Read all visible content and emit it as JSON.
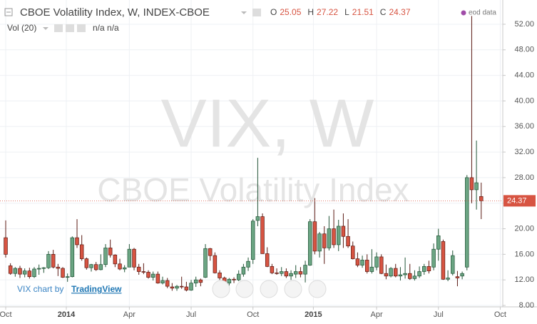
{
  "chart_data": {
    "type": "candlestick",
    "title": "CBOE Volatility Index, W, INDEX-CBOE",
    "ohlc_labels": [
      "O",
      "H",
      "L",
      "C"
    ],
    "indicator": "Vol (20)",
    "indicator_values": "n/a n/a",
    "data_note": "eod data",
    "watermark": "VIX, W",
    "watermark_subtitle": "CBOE Volatility Index",
    "credit": "VIX chart by",
    "credit_link": "TradingView",
    "up_color": "#6ba583",
    "down_color": "#d75442",
    "grid": true,
    "ylim": [
      7.6,
      53.6
    ],
    "yticks": [
      {
        "value": 8,
        "label": "8.00"
      },
      {
        "value": 12,
        "label": "12.00"
      },
      {
        "value": 16,
        "label": "16.00"
      },
      {
        "value": 20,
        "label": "20.00"
      },
      {
        "value": 24,
        "label": "24.00"
      },
      {
        "value": 28,
        "label": "28.00"
      },
      {
        "value": 32,
        "label": "32.00"
      },
      {
        "value": 36,
        "label": "36.00"
      },
      {
        "value": 40,
        "label": "40.00"
      },
      {
        "value": 44,
        "label": "44.00"
      },
      {
        "value": 48,
        "label": "48.00"
      },
      {
        "value": 52,
        "label": "52.00"
      }
    ],
    "xlim": [
      0,
      104.8
    ],
    "xticks": [
      {
        "value": 0,
        "label": "Oct"
      },
      {
        "value": 12.75,
        "label": "2014"
      },
      {
        "value": 26,
        "label": "Apr"
      },
      {
        "value": 39,
        "label": "Jul"
      },
      {
        "value": 52,
        "label": "Oct"
      },
      {
        "value": 64.7,
        "label": "2015"
      },
      {
        "value": 78,
        "label": "Apr"
      },
      {
        "value": 91,
        "label": "Jul"
      },
      {
        "value": 104,
        "label": "Oct"
      }
    ],
    "open": [
      18.6,
      14.2,
      13.0,
      13.8,
      12.9,
      13.4,
      12.5,
      13.7,
      13.8,
      13.9,
      16.0,
      14.0,
      13.8,
      12.4,
      12.5,
      18.6,
      17.5,
      15.3,
      13.9,
      14.4,
      13.6,
      14.4,
      17.0,
      15.9,
      14.5,
      13.7,
      14.0,
      16.8,
      14.0,
      13.3,
      13.2,
      12.4,
      12.9,
      11.5,
      11.9,
      10.9,
      10.7,
      11.0,
      10.9,
      10.4,
      11.5,
      12.0,
      12.4,
      16.9,
      15.8,
      13.1,
      12.3,
      11.5,
      12.1,
      12.0,
      12.9,
      14.0,
      15.2,
      21.3,
      21.9,
      16.1,
      14.1,
      13.1,
      13.0,
      13.3,
      12.6,
      12.9,
      13.3,
      12.9,
      14.3,
      21.1,
      16.5,
      19.2,
      17.0,
      20.0,
      17.5,
      20.4,
      18.8,
      17.3,
      15.3,
      14.3,
      15.1,
      13.3,
      14.0,
      15.6,
      13.0,
      12.6,
      13.8,
      12.6,
      12.8,
      13.0,
      12.2,
      12.6,
      13.3,
      14.1,
      14.0,
      16.8,
      18.0,
      12.1,
      13.0,
      12.5,
      12.6,
      14.0,
      28.0,
      26.1,
      25.05
    ],
    "high": [
      21.3,
      14.6,
      14.0,
      14.2,
      13.8,
      13.9,
      14.0,
      14.4,
      14.0,
      16.5,
      16.7,
      14.5,
      14.0,
      13.0,
      18.8,
      21.5,
      19.0,
      15.5,
      14.5,
      14.8,
      16.0,
      17.6,
      18.3,
      16.0,
      15.3,
      14.3,
      17.6,
      17.0,
      14.5,
      14.6,
      13.5,
      13.3,
      13.3,
      12.5,
      12.3,
      11.5,
      11.2,
      12.5,
      11.7,
      12.0,
      12.5,
      12.2,
      17.6,
      17.0,
      16.3,
      13.5,
      12.5,
      12.3,
      12.4,
      13.5,
      14.5,
      15.5,
      21.5,
      31.1,
      22.4,
      17.1,
      14.5,
      13.8,
      14.0,
      13.8,
      13.5,
      14.3,
      14.0,
      15.0,
      21.5,
      24.8,
      19.5,
      20.4,
      22.0,
      23.0,
      21.4,
      22.4,
      21.5,
      18.0,
      16.3,
      15.8,
      16.0,
      16.8,
      16.3,
      16.0,
      14.4,
      14.0,
      14.5,
      14.0,
      15.5,
      14.5,
      13.5,
      14.1,
      14.5,
      15.0,
      17.7,
      20.0,
      18.3,
      13.5,
      16.6,
      13.4,
      13.3,
      28.4,
      53.3,
      33.8,
      27.22
    ],
    "low": [
      15.5,
      12.8,
      12.5,
      12.3,
      12.4,
      12.2,
      12.3,
      12.8,
      13.1,
      13.7,
      13.8,
      12.6,
      12.3,
      11.7,
      12.4,
      17.0,
      15.0,
      13.6,
      13.3,
      13.4,
      13.5,
      14.0,
      15.5,
      14.0,
      13.5,
      13.2,
      14.0,
      13.5,
      12.8,
      12.9,
      12.2,
      11.9,
      11.4,
      11.3,
      10.7,
      10.3,
      10.3,
      10.6,
      10.2,
      10.3,
      10.9,
      11.0,
      12.3,
      15.0,
      13.0,
      12.0,
      11.3,
      11.1,
      11.5,
      11.8,
      12.5,
      13.4,
      14.5,
      20.4,
      16.1,
      14.0,
      12.9,
      12.8,
      12.6,
      12.3,
      12.0,
      12.3,
      12.4,
      11.6,
      14.2,
      16.0,
      15.5,
      14.5,
      16.6,
      17.0,
      16.5,
      17.0,
      17.0,
      15.2,
      14.0,
      13.9,
      13.0,
      13.0,
      13.5,
      12.9,
      12.1,
      12.4,
      12.4,
      11.9,
      12.2,
      12.0,
      11.9,
      12.3,
      12.8,
      13.0,
      13.5,
      15.0,
      12.0,
      11.8,
      12.7,
      11.0,
      12.1,
      13.5,
      24.0,
      23.0,
      21.51
    ],
    "close": [
      16.0,
      13.0,
      13.8,
      12.9,
      13.4,
      12.5,
      13.7,
      13.8,
      13.9,
      16.0,
      14.0,
      13.8,
      12.4,
      12.5,
      18.6,
      17.5,
      15.3,
      13.9,
      14.4,
      13.6,
      14.4,
      17.0,
      15.9,
      14.5,
      13.7,
      13.9,
      16.8,
      14.0,
      13.3,
      13.2,
      12.4,
      12.9,
      11.5,
      11.9,
      11.0,
      10.7,
      11.0,
      10.9,
      10.4,
      11.5,
      12.0,
      11.6,
      16.9,
      15.8,
      13.1,
      12.3,
      11.5,
      12.1,
      12.0,
      12.9,
      14.0,
      14.9,
      21.2,
      21.9,
      16.1,
      14.1,
      13.1,
      13.0,
      13.3,
      12.6,
      13.0,
      13.3,
      12.9,
      14.3,
      21.1,
      16.5,
      19.2,
      17.0,
      20.0,
      17.5,
      20.4,
      18.8,
      17.3,
      15.3,
      14.3,
      15.1,
      13.3,
      14.0,
      15.6,
      13.0,
      12.6,
      13.8,
      12.6,
      12.8,
      13.0,
      12.2,
      12.6,
      13.3,
      14.1,
      13.4,
      16.8,
      18.9,
      12.1,
      12.3,
      15.8,
      12.3,
      13.0,
      28.0,
      26.1,
      27.2,
      24.37
    ]
  }
}
